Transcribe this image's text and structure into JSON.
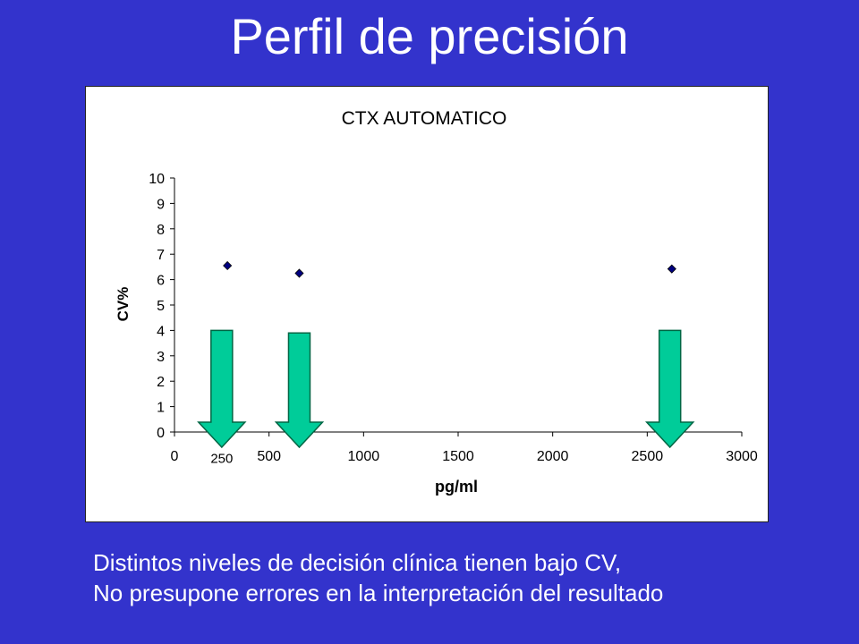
{
  "slide": {
    "title": "Perfil de precisión",
    "caption_lines": [
      "Distintos niveles de decisión clínica tienen bajo CV,",
      "No presupone errores en la interpretación del resultado"
    ]
  },
  "colors": {
    "background": "#3333cc",
    "marker": "#000080",
    "arrow_fill": "#00cc99",
    "arrow_stroke": "#006644"
  },
  "chart_data": {
    "type": "scatter",
    "title": "CTX AUTOMATICO",
    "xlabel": "pg/ml",
    "ylabel": "CV%",
    "xlim": [
      0,
      3000
    ],
    "ylim": [
      0,
      10
    ],
    "x_ticks": [
      0,
      500,
      1000,
      1500,
      2000,
      2500,
      3000
    ],
    "y_ticks": [
      0,
      1,
      2,
      3,
      4,
      5,
      6,
      7,
      8,
      9,
      10
    ],
    "grid": false,
    "series": [
      {
        "points": [
          {
            "x": 280,
            "y": 6.55
          },
          {
            "x": 660,
            "y": 6.25
          },
          {
            "x": 2630,
            "y": 6.42
          }
        ]
      }
    ],
    "annotations": [
      {
        "type": "text",
        "text": "250",
        "x": 250,
        "y": -1.0
      }
    ],
    "arrows": [
      {
        "x": 250,
        "y_top": 4.0,
        "y_bottom": -0.6
      },
      {
        "x": 660,
        "y_top": 3.9,
        "y_bottom": -0.6
      },
      {
        "x": 2620,
        "y_top": 4.0,
        "y_bottom": -0.6
      }
    ]
  }
}
